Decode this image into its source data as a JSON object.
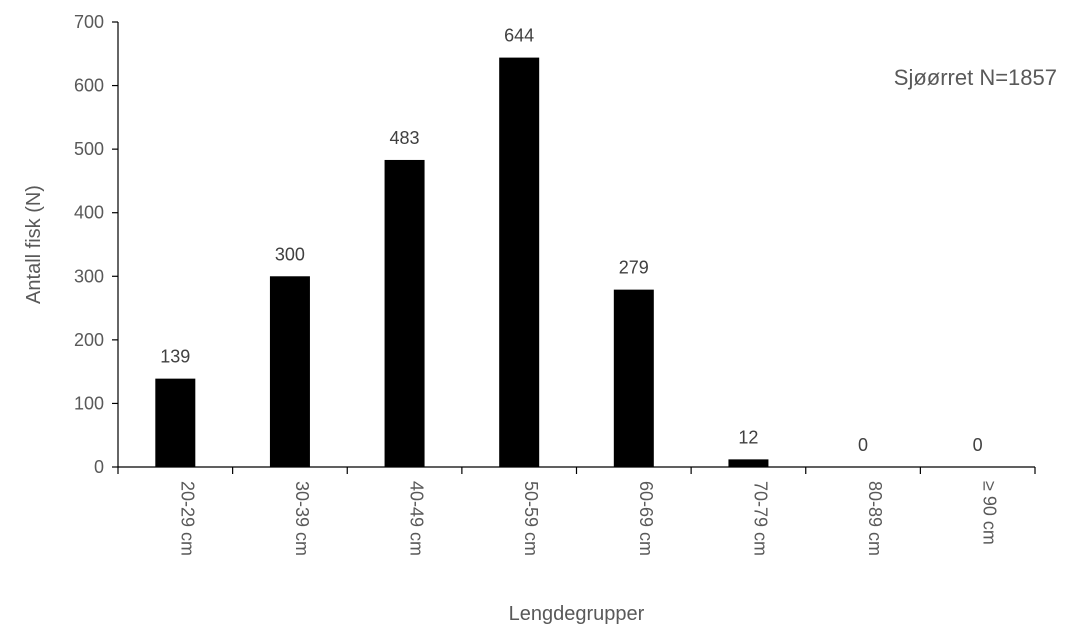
{
  "chart_data": {
    "type": "bar",
    "categories": [
      "20-29 cm",
      "30-39 cm",
      "40-49 cm",
      "50-59 cm",
      "60-69 cm",
      "70-79 cm",
      "80-89 cm",
      "≥ 90 cm"
    ],
    "values": [
      139,
      300,
      483,
      644,
      279,
      12,
      0,
      0
    ],
    "data_labels": [
      "139",
      "300",
      "483",
      "644",
      "279",
      "12",
      "0",
      "0"
    ],
    "title": "",
    "xlabel": "Lengdegrupper",
    "ylabel": "Antall fisk (N)",
    "ylim": [
      0,
      700
    ],
    "yticks": [
      0,
      100,
      200,
      300,
      400,
      500,
      600,
      700
    ],
    "ytick_labels": [
      "0",
      "100",
      "200",
      "300",
      "400",
      "500",
      "600",
      "700"
    ],
    "annotation": "Sjøørret N=1857",
    "grid": false,
    "legend": "none",
    "bar_color": "#000000",
    "axis_color": "#000000",
    "text_color": "#595959"
  }
}
